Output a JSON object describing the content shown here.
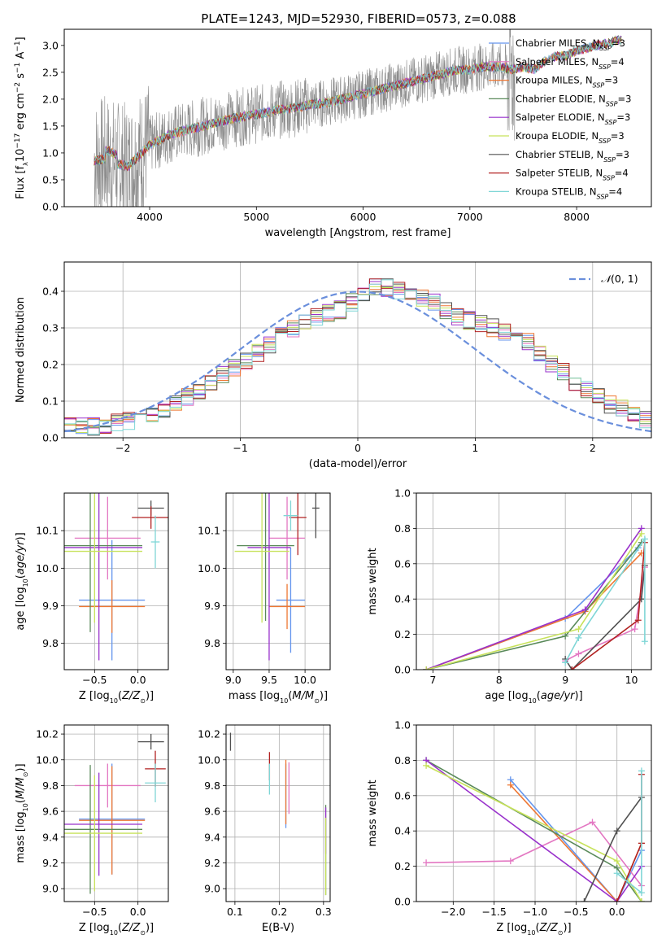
{
  "figure_title": "PLATE=1243, MJD=52930, FIBERID=0573, z=0.088",
  "colors": {
    "Chabrier MILES": "#6495ed",
    "Salpeter MILES": "#e377c2",
    "Kroupa MILES": "#ee7733",
    "Chabrier ELODIE": "#5a8a5a",
    "Salpeter ELODIE": "#9932cc",
    "Kroupa ELODIE": "#c7e25a",
    "Chabrier STELIB": "#505050",
    "Salpeter STELIB": "#b22222",
    "Kroupa STELIB": "#7fd6d6",
    "data": "#808080",
    "gauss": "#6a8fdc"
  },
  "chart_data": [
    {
      "id": "spectrum",
      "type": "line",
      "title": "PLATE=1243, MJD=52930, FIBERID=0573, z=0.088",
      "xlabel": "wavelength [Angstrom, rest frame]",
      "ylabel": "Flux [f_λ 10^-17 erg cm^-2 s^-1 A^-1]",
      "xlim": [
        3200,
        8700
      ],
      "ylim": [
        0,
        3.3
      ],
      "xticks": [
        4000,
        5000,
        6000,
        7000,
        8000
      ],
      "yticks": [
        0.0,
        0.5,
        1.0,
        1.5,
        2.0,
        2.5,
        3.0
      ],
      "grid": false,
      "legend_position": "top-right",
      "legend": [
        "Chabrier MILES, N_SSP=3",
        "Salpeter MILES, N_SSP=4",
        "Kroupa MILES, N_SSP=3",
        "Chabrier ELODIE, N_SSP=3",
        "Salpeter ELODIE, N_SSP=3",
        "Kroupa ELODIE, N_SSP=3",
        "Chabrier STELIB, N_SSP=3",
        "Salpeter STELIB, N_SSP=4",
        "Kroupa STELIB, N_SSP=4"
      ],
      "data_x": [
        3500,
        3600,
        3700,
        3800,
        3900,
        4000,
        4100,
        4200,
        4300,
        4400,
        4500,
        4600,
        4700,
        4800,
        4900,
        5000,
        5100,
        5200,
        5300,
        5400,
        5500,
        5600,
        5700,
        5800,
        5900,
        6000,
        6100,
        6200,
        6300,
        6400,
        6500,
        6600,
        6700,
        6800,
        6900,
        7000,
        7100,
        7200,
        7300,
        7400,
        7500,
        7600,
        7700,
        7800,
        7900,
        8000,
        8100,
        8200,
        8300,
        8400
      ],
      "model_y": [
        0.85,
        0.9,
        0.8,
        0.75,
        0.95,
        1.15,
        1.25,
        1.35,
        1.4,
        1.45,
        1.5,
        1.55,
        1.6,
        1.65,
        1.68,
        1.72,
        1.75,
        1.8,
        1.82,
        1.85,
        1.9,
        1.92,
        1.95,
        2.0,
        2.05,
        2.1,
        2.15,
        2.2,
        2.25,
        2.3,
        2.35,
        2.4,
        2.45,
        2.5,
        2.55,
        2.55,
        2.6,
        2.6,
        2.6,
        2.55,
        2.6,
        2.55,
        2.7,
        2.8,
        2.8,
        2.9,
        2.95,
        3.0,
        3.05,
        3.1
      ]
    },
    {
      "id": "residuals",
      "type": "histogram",
      "xlabel": "(data-model)/error",
      "ylabel": "Normed distribution",
      "xlim": [
        -2.5,
        2.5
      ],
      "ylim": [
        0,
        0.48
      ],
      "xticks": [
        -2,
        -1,
        0,
        1,
        2
      ],
      "yticks": [
        0.0,
        0.1,
        0.2,
        0.3,
        0.4
      ],
      "grid": true,
      "legend": [
        "N(0,1)"
      ],
      "legend_position": "top-right",
      "bin_width": 0.1,
      "x_start": -2.5,
      "base": [
        0.03,
        0.03,
        0.03,
        0.035,
        0.04,
        0.045,
        0.05,
        0.06,
        0.08,
        0.095,
        0.11,
        0.13,
        0.15,
        0.17,
        0.19,
        0.21,
        0.23,
        0.255,
        0.28,
        0.3,
        0.32,
        0.33,
        0.34,
        0.35,
        0.37,
        0.39,
        0.41,
        0.41,
        0.4,
        0.39,
        0.38,
        0.37,
        0.35,
        0.33,
        0.32,
        0.31,
        0.3,
        0.29,
        0.28,
        0.26,
        0.23,
        0.2,
        0.18,
        0.15,
        0.13,
        0.11,
        0.09,
        0.08,
        0.07,
        0.05,
        0.05
      ]
    },
    {
      "id": "age-vs-Z",
      "type": "errorbar",
      "xlabel": "Z [log10(Z/Z☉)]",
      "ylabel": "age [log10(age/yr)]",
      "xlim": [
        -0.85,
        0.35
      ],
      "ylim": [
        9.73,
        10.2
      ],
      "xticks": [
        -0.5,
        0.0
      ],
      "yticks": [
        9.8,
        9.9,
        10.0,
        10.1
      ],
      "grid": true
    },
    {
      "id": "age-vs-mass",
      "type": "errorbar",
      "xlabel": "mass [log10(M/M☉)]",
      "ylabel": "",
      "xlim": [
        8.9,
        10.35
      ],
      "ylim": [
        9.73,
        10.2
      ],
      "xticks": [
        9.0,
        9.5,
        10.0
      ],
      "yticks": [
        9.8,
        9.9,
        10.0,
        10.1
      ],
      "grid": true
    },
    {
      "id": "weight-vs-age",
      "type": "line",
      "xlabel": "age [log10(age/yr)]",
      "ylabel": "mass weight",
      "xlim": [
        6.75,
        10.3
      ],
      "ylim": [
        0,
        1.0
      ],
      "xticks": [
        7,
        8,
        9,
        10
      ],
      "yticks": [
        0.0,
        0.2,
        0.4,
        0.6,
        0.8,
        1.0
      ],
      "grid": true
    },
    {
      "id": "mass-vs-Z",
      "type": "errorbar",
      "xlabel": "Z [log10(Z/Z☉)]",
      "ylabel": "mass [log10(M/M☉)]",
      "xlim": [
        -0.85,
        0.35
      ],
      "ylim": [
        8.9,
        10.27
      ],
      "xticks": [
        -0.5,
        0.0
      ],
      "yticks": [
        9.0,
        9.2,
        9.4,
        9.6,
        9.8,
        10.0,
        10.2
      ],
      "grid": true
    },
    {
      "id": "mass-vs-ebv",
      "type": "errorbar",
      "xlabel": "E(B-V)",
      "ylabel": "",
      "xlim": [
        0.08,
        0.315
      ],
      "ylim": [
        8.9,
        10.27
      ],
      "xticks": [
        0.1,
        0.2,
        0.3
      ],
      "yticks": [
        9.0,
        9.2,
        9.4,
        9.6,
        9.8,
        10.0,
        10.2
      ],
      "grid": true
    },
    {
      "id": "weight-vs-Z",
      "type": "line",
      "xlabel": "Z [log10(Z/Z☉)]",
      "ylabel": "mass weight",
      "xlim": [
        -2.45,
        0.42
      ],
      "ylim": [
        0,
        1.0
      ],
      "xticks": [
        -2.0,
        -1.5,
        -1.0,
        -0.5,
        0.0
      ],
      "yticks": [
        0.0,
        0.2,
        0.4,
        0.6,
        0.8,
        1.0
      ],
      "grid": true
    }
  ]
}
